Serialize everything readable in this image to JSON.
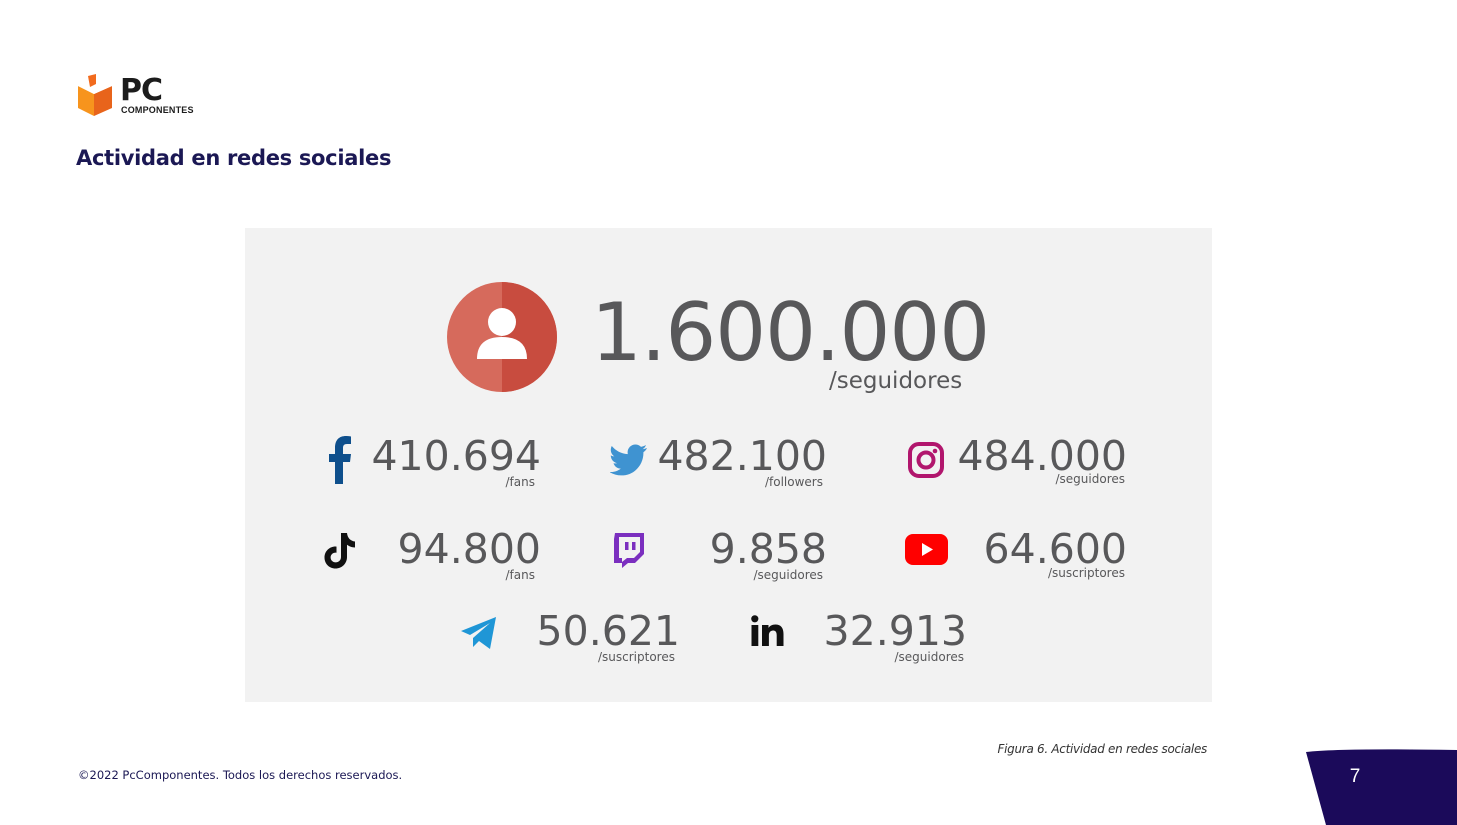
{
  "brand": {
    "name": "PC",
    "subtitle": "COMPONENTES",
    "color": "#f26b1d"
  },
  "page_title": "Actividad en redes sociales",
  "total": {
    "value": "1.600.000",
    "unit": "/seguidores",
    "icon": "user-icon",
    "color": "#d35446"
  },
  "stats": [
    {
      "network": "facebook",
      "icon": "facebook-icon",
      "value": "410.694",
      "unit": "/fans",
      "color": "#0e4f8c"
    },
    {
      "network": "twitter",
      "icon": "twitter-icon",
      "value": "482.100",
      "unit": "/followers",
      "color": "#3f93d1"
    },
    {
      "network": "instagram",
      "icon": "instagram-icon",
      "value": "484.000",
      "unit": "/seguidores",
      "color": "#b1166d"
    },
    {
      "network": "tiktok",
      "icon": "tiktok-icon",
      "value": "94.800",
      "unit": "/fans",
      "color": "#111111"
    },
    {
      "network": "twitch",
      "icon": "twitch-icon",
      "value": "9.858",
      "unit": "/seguidores",
      "color": "#7b2fbf"
    },
    {
      "network": "youtube",
      "icon": "youtube-icon",
      "value": "64.600",
      "unit": "/suscriptores",
      "color": "#ff0000"
    },
    {
      "network": "telegram",
      "icon": "telegram-icon",
      "value": "50.621",
      "unit": "/suscriptores",
      "color": "#1f96d6"
    },
    {
      "network": "linkedin",
      "icon": "linkedin-icon",
      "value": "32.913",
      "unit": "/seguidores",
      "color": "#111111"
    }
  ],
  "caption": "Figura 6. Actividad en redes sociales",
  "footer": {
    "copyright": "©2022 PcComponentes. Todos los derechos reservados.",
    "page_number": "7",
    "tab_color": "#1b0a5a"
  }
}
